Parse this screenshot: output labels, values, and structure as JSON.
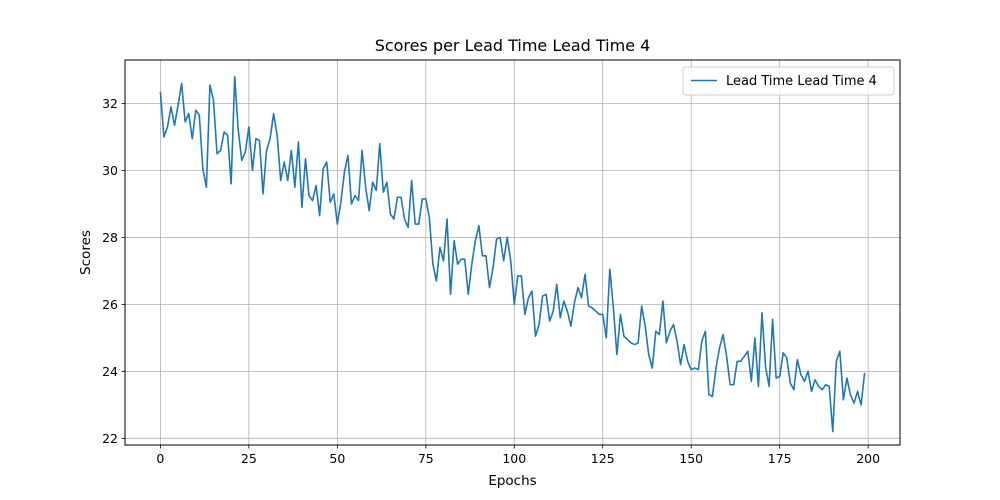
{
  "chart_data": {
    "type": "line",
    "title": "Scores per Lead Time Lead Time 4",
    "xlabel": "Epochs",
    "ylabel": "Scores",
    "xlim": [
      -10,
      209
    ],
    "ylim": [
      21.8,
      33.3
    ],
    "xticks": [
      0,
      25,
      50,
      75,
      100,
      125,
      150,
      175,
      200
    ],
    "yticks": [
      22,
      24,
      26,
      28,
      30,
      32
    ],
    "grid": true,
    "legend_position": "top-right",
    "line_color": "#1f77b4",
    "series": [
      {
        "name": "Lead Time Lead Time 4",
        "x_start": 0,
        "x_step": 1,
        "values": [
          32.35,
          31.0,
          31.3,
          31.9,
          31.35,
          31.95,
          32.6,
          31.45,
          31.7,
          30.95,
          31.8,
          31.65,
          30.05,
          29.5,
          32.55,
          32.1,
          30.5,
          30.6,
          31.15,
          31.05,
          29.6,
          32.8,
          31.2,
          30.3,
          30.55,
          31.3,
          30.0,
          30.95,
          30.9,
          29.3,
          30.6,
          30.95,
          31.7,
          31.05,
          29.7,
          30.25,
          29.7,
          30.6,
          29.5,
          30.85,
          28.9,
          30.35,
          29.25,
          29.1,
          29.55,
          28.65,
          30.05,
          30.25,
          29.05,
          29.3,
          28.4,
          29.05,
          29.95,
          30.45,
          29.0,
          29.25,
          29.1,
          30.6,
          29.5,
          28.8,
          29.65,
          29.4,
          30.8,
          29.35,
          29.65,
          28.7,
          28.55,
          29.2,
          29.2,
          28.55,
          28.3,
          29.7,
          28.4,
          28.4,
          29.15,
          29.15,
          28.6,
          27.2,
          26.7,
          27.7,
          27.3,
          28.55,
          26.3,
          27.9,
          27.2,
          27.35,
          27.35,
          26.3,
          27.2,
          27.9,
          28.35,
          27.45,
          27.45,
          26.5,
          27.1,
          27.95,
          28.0,
          27.3,
          28.0,
          27.3,
          26.0,
          26.85,
          26.85,
          25.7,
          26.2,
          26.4,
          25.05,
          25.4,
          26.25,
          26.3,
          25.5,
          25.8,
          26.6,
          25.6,
          26.1,
          25.8,
          25.35,
          26.05,
          26.5,
          26.2,
          26.9,
          25.95,
          25.9,
          25.8,
          25.7,
          25.7,
          25.0,
          27.05,
          25.9,
          24.5,
          25.7,
          25.05,
          24.95,
          24.85,
          24.8,
          24.85,
          25.95,
          25.35,
          24.5,
          24.1,
          25.2,
          25.1,
          26.1,
          24.85,
          25.2,
          25.4,
          24.9,
          24.2,
          24.8,
          24.3,
          24.05,
          24.1,
          24.05,
          24.9,
          25.2,
          23.3,
          23.25,
          24.1,
          24.7,
          25.1,
          24.45,
          23.6,
          23.6,
          24.3,
          24.3,
          24.45,
          24.6,
          23.7,
          25.0,
          23.55,
          25.75,
          24.15,
          23.55,
          25.55,
          23.8,
          23.85,
          24.55,
          24.4,
          23.65,
          23.45,
          24.35,
          23.9,
          23.7,
          24.0,
          23.4,
          23.75,
          23.55,
          23.45,
          23.6,
          23.55,
          22.2,
          24.3,
          24.6,
          23.15,
          23.8,
          23.3,
          23.05,
          23.4,
          23.0,
          23.95
        ]
      }
    ]
  }
}
